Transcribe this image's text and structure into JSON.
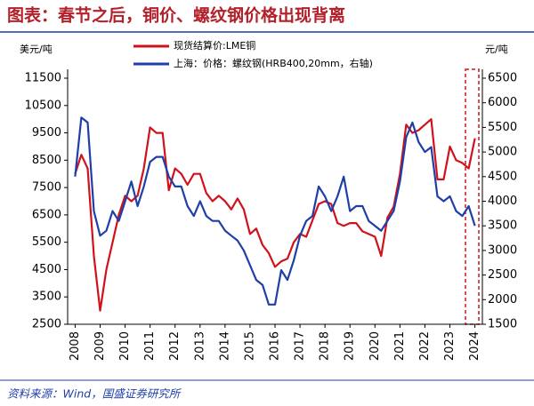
{
  "chart_data": {
    "type": "line",
    "title": "图表：春节之后，铜价、螺纹钢价格出现背离",
    "y_label": "美元/吨",
    "y2_label": "元/吨",
    "source": "资料来源：Wind，国盛证券研究所",
    "x": [
      2008,
      2008.25,
      2008.5,
      2008.75,
      2009,
      2009.25,
      2009.5,
      2009.75,
      2010,
      2010.25,
      2010.5,
      2010.75,
      2011,
      2011.25,
      2011.5,
      2011.75,
      2012,
      2012.25,
      2012.5,
      2012.75,
      2013,
      2013.25,
      2013.5,
      2013.75,
      2014,
      2014.25,
      2014.5,
      2014.75,
      2015,
      2015.25,
      2015.5,
      2015.75,
      2016,
      2016.25,
      2016.5,
      2016.75,
      2017,
      2017.25,
      2017.5,
      2017.75,
      2018,
      2018.25,
      2018.5,
      2018.75,
      2019,
      2019.25,
      2019.5,
      2019.75,
      2020,
      2020.25,
      2020.5,
      2020.75,
      2021,
      2021.25,
      2021.5,
      2021.75,
      2022,
      2022.25,
      2022.5,
      2022.75,
      2023,
      2023.25,
      2023.5,
      2023.75,
      2024
    ],
    "series": [
      {
        "name": "现货结算价:LME铜",
        "color": "#d0121b",
        "values": [
          8000,
          8700,
          8200,
          5000,
          3000,
          4500,
          5500,
          6500,
          7200,
          7000,
          7200,
          8200,
          9700,
          9500,
          9500,
          7400,
          8200,
          8000,
          7600,
          8000,
          8000,
          7300,
          7000,
          7200,
          7000,
          6700,
          7100,
          6700,
          5800,
          6000,
          5400,
          5100,
          4600,
          4800,
          4900,
          5500,
          5800,
          5700,
          6300,
          6900,
          7000,
          6900,
          6200,
          6100,
          6200,
          6200,
          5900,
          5800,
          5700,
          5000,
          6400,
          6800,
          8000,
          9800,
          9500,
          9600,
          9800,
          10000,
          7800,
          7800,
          9000,
          8500,
          8400,
          8200,
          9300
        ]
      },
      {
        "name": "上海：价格：螺纹钢(HRB400,20mm，右轴)",
        "color": "#1f3fa8",
        "axis": "y2",
        "values": [
          4500,
          5700,
          5600,
          3800,
          3300,
          3400,
          3800,
          3600,
          4000,
          4400,
          3900,
          4300,
          4800,
          4900,
          4900,
          4500,
          4300,
          4300,
          3900,
          3700,
          4000,
          3700,
          3600,
          3600,
          3400,
          3300,
          3200,
          3000,
          2700,
          2400,
          2300,
          1900,
          1900,
          2600,
          2400,
          2800,
          3300,
          3600,
          3700,
          4300,
          4100,
          3800,
          4100,
          4500,
          3800,
          3900,
          3900,
          3600,
          3500,
          3400,
          3600,
          3800,
          4400,
          5300,
          5600,
          5200,
          5000,
          5100,
          4100,
          4000,
          4100,
          3800,
          3700,
          3900,
          3500
        ]
      }
    ],
    "xlim": [
      2007.7,
      2024.3
    ],
    "xticks": [
      2008,
      2009,
      2010,
      2011,
      2012,
      2013,
      2014,
      2015,
      2016,
      2017,
      2018,
      2019,
      2020,
      2021,
      2022,
      2023,
      2024
    ],
    "ylim": [
      2500,
      11500
    ],
    "yticks": [
      2500,
      3500,
      4500,
      5500,
      6500,
      7500,
      8500,
      9500,
      10500,
      11500
    ],
    "y2lim": [
      1500,
      6500
    ],
    "y2ticks": [
      1500,
      2000,
      2500,
      3000,
      3500,
      4000,
      4500,
      5000,
      5500,
      6000,
      6500
    ],
    "grid": false
  }
}
